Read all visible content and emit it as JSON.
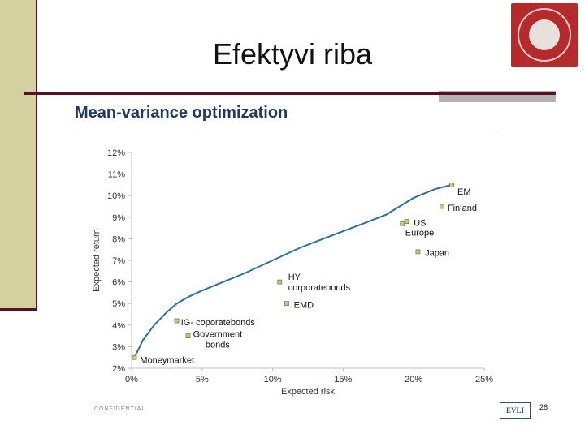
{
  "slide": {
    "title": "Efektyvi riba",
    "page_number": "28",
    "confidential_note": "CONFIDENTIAL",
    "brand": "EVLI"
  },
  "colors": {
    "accent_bar": "#d4d1a0",
    "rule": "#5a1020",
    "curve": "#2e6f9e",
    "point_fill": "#c8cc78",
    "point_stroke": "#6f7a50",
    "heading": "#203a5c"
  },
  "chart_data": {
    "type": "scatter",
    "title": "Mean-variance optimization",
    "xlabel": "Expected risk",
    "ylabel": "Expected return",
    "xlim": [
      0,
      25
    ],
    "ylim": [
      2,
      12
    ],
    "x_ticks": [
      0,
      5,
      10,
      15,
      20,
      25
    ],
    "x_tick_labels": [
      "0%",
      "5%",
      "10%",
      "15%",
      "20%",
      "25%"
    ],
    "y_ticks": [
      2,
      3,
      4,
      5,
      6,
      7,
      8,
      9,
      10,
      11,
      12
    ],
    "y_tick_labels": [
      "2%",
      "3%",
      "4%",
      "5%",
      "6%",
      "7%",
      "8%",
      "9%",
      "10%",
      "11%",
      "12%"
    ],
    "grid": false,
    "frontier": {
      "x": [
        0.2,
        0.8,
        1.6,
        2.5,
        3.2,
        4.0,
        5.0,
        6.5,
        8.0,
        10.0,
        12.0,
        14.0,
        16.0,
        18.0,
        20.0,
        21.5,
        22.7
      ],
      "y": [
        2.5,
        3.3,
        4.0,
        4.6,
        5.0,
        5.3,
        5.6,
        6.0,
        6.4,
        7.0,
        7.6,
        8.1,
        8.6,
        9.1,
        9.9,
        10.3,
        10.5
      ]
    },
    "points": [
      {
        "label": "Moneymarket",
        "x": 0.2,
        "y": 2.5
      },
      {
        "label": "IG- coporatebonds",
        "x": 3.2,
        "y": 4.2
      },
      {
        "label": "Government bonds",
        "x": 4.0,
        "y": 3.5
      },
      {
        "label": "HY corporatebonds",
        "x": 10.5,
        "y": 6.0
      },
      {
        "label": "EMD",
        "x": 11.0,
        "y": 5.0
      },
      {
        "label": "US",
        "x": 19.5,
        "y": 8.8
      },
      {
        "label": "Europe",
        "x": 19.2,
        "y": 8.7
      },
      {
        "label": "Japan",
        "x": 20.3,
        "y": 7.4
      },
      {
        "label": "Finland",
        "x": 22.0,
        "y": 9.5
      },
      {
        "label": "EM",
        "x": 22.7,
        "y": 10.5
      }
    ],
    "annotations": [
      {
        "lines": [
          "Moneymarket"
        ],
        "x": 0.6,
        "y": 2.4,
        "anchor": "start"
      },
      {
        "lines": [
          "IG- coporatebonds"
        ],
        "x": 3.5,
        "y": 4.15,
        "anchor": "start"
      },
      {
        "lines": [
          "Government",
          "bonds"
        ],
        "x": 6.1,
        "y": 3.6,
        "anchor": "middle"
      },
      {
        "lines": [
          "HY",
          "corporatebonds"
        ],
        "x": 11.1,
        "y": 6.25,
        "anchor": "start"
      },
      {
        "lines": [
          "EMD"
        ],
        "x": 11.5,
        "y": 4.95,
        "anchor": "start"
      },
      {
        "lines": [
          "US"
        ],
        "x": 20.0,
        "y": 8.75,
        "anchor": "start"
      },
      {
        "lines": [
          "Europe"
        ],
        "x": 19.4,
        "y": 8.3,
        "anchor": "start"
      },
      {
        "lines": [
          "Japan"
        ],
        "x": 20.8,
        "y": 7.35,
        "anchor": "start"
      },
      {
        "lines": [
          "Finland"
        ],
        "x": 22.4,
        "y": 9.45,
        "anchor": "start"
      },
      {
        "lines": [
          "EM"
        ],
        "x": 23.1,
        "y": 10.2,
        "anchor": "start"
      }
    ]
  }
}
